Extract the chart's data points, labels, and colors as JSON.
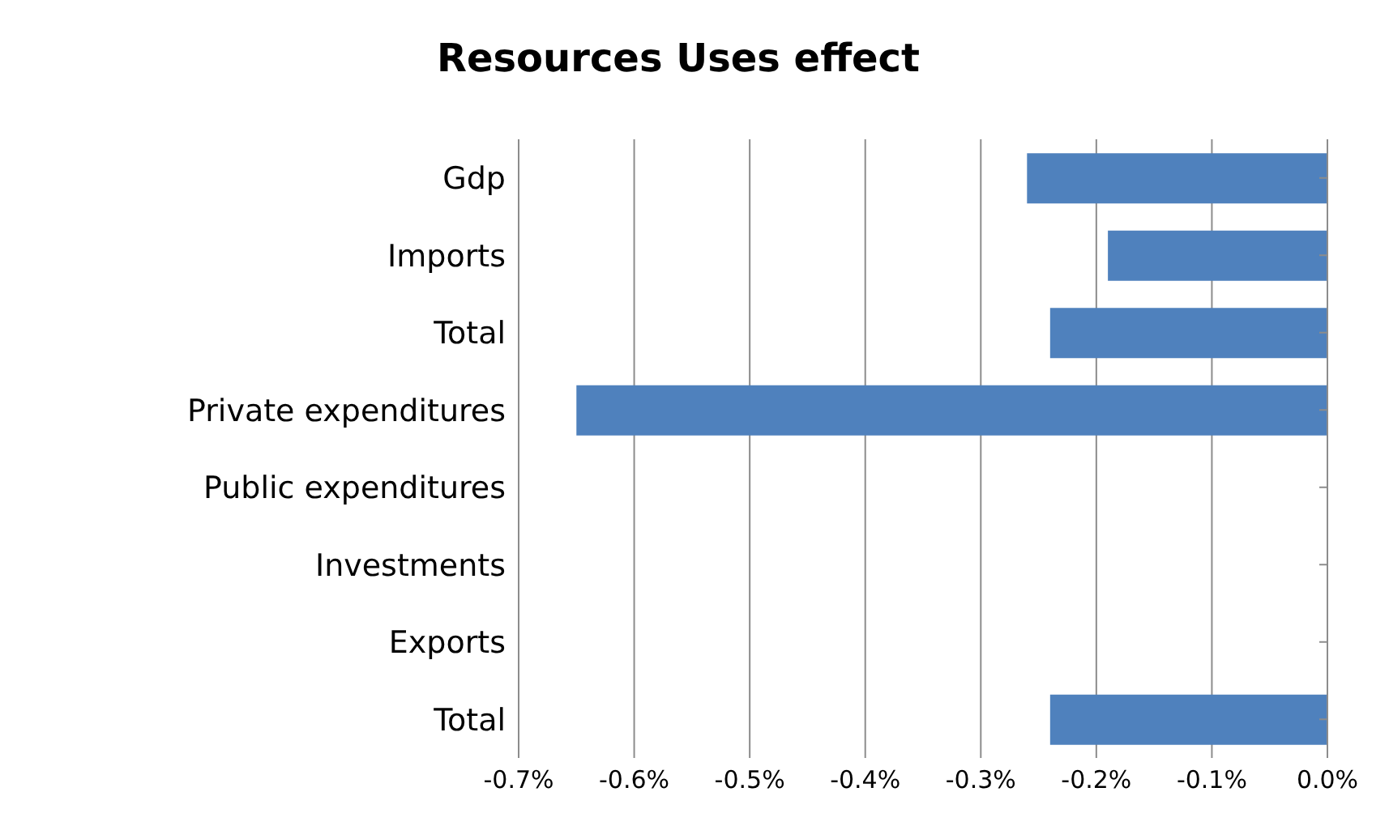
{
  "chart_data": {
    "type": "bar",
    "orientation": "horizontal",
    "title": "Resources Uses effect",
    "categories": [
      "Gdp",
      "Imports",
      "Total",
      "Private expenditures",
      "Public expenditures",
      "Investments",
      "Exports",
      "Total"
    ],
    "values": [
      -0.26,
      -0.19,
      -0.24,
      -0.65,
      0,
      0,
      0,
      -0.24
    ],
    "color": "#4f81bd",
    "xlim": [
      -0.7,
      0
    ],
    "xticks": [
      {
        "value": -0.7,
        "label": "-0.7%"
      },
      {
        "value": -0.6,
        "label": "-0.6%"
      },
      {
        "value": -0.5,
        "label": "-0.5%"
      },
      {
        "value": -0.4,
        "label": "-0.4%"
      },
      {
        "value": -0.3,
        "label": "-0.3%"
      },
      {
        "value": -0.2,
        "label": "-0.2%"
      },
      {
        "value": -0.1,
        "label": "-0.1%"
      },
      {
        "value": 0,
        "label": "0.0%"
      }
    ],
    "grid": "x"
  }
}
